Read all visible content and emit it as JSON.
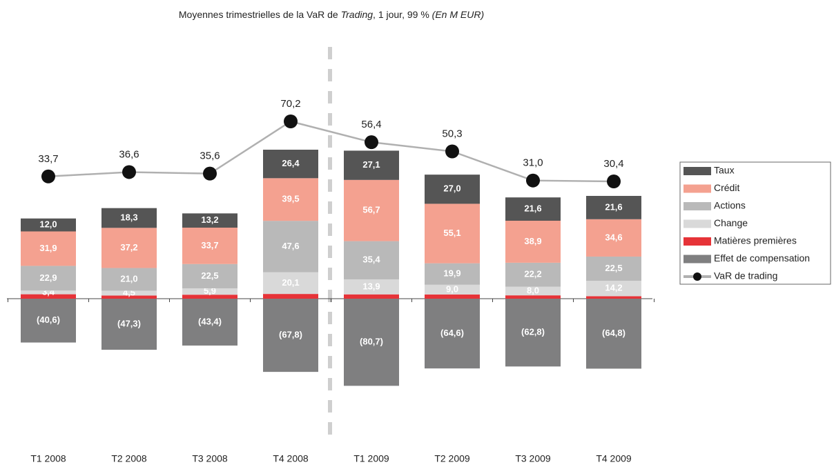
{
  "chart_data": {
    "type": "bar",
    "title": [
      "Moyennes trimestrielles de la VaR de ",
      "Trading",
      ", 1 jour, 99 % ",
      "(En M EUR)"
    ],
    "categories": [
      "T1 2008",
      "T2 2008",
      "T3 2008",
      "T4 2008",
      "T1 2009",
      "T2 2009",
      "T3 2009",
      "T4 2009"
    ],
    "series": [
      {
        "name": "Taux",
        "color": "#555555",
        "values": [
          12.0,
          18.3,
          13.2,
          26.4,
          27.1,
          27.0,
          21.6,
          21.6
        ],
        "value_labels": [
          "12,0",
          "18,3",
          "13,2",
          "26,4",
          "27,1",
          "27,0",
          "21,6",
          "21,6"
        ]
      },
      {
        "name": "Crédit",
        "color": "#f4a190",
        "values": [
          31.9,
          37.2,
          33.7,
          39.5,
          56.7,
          55.1,
          38.9,
          34.6
        ],
        "value_labels": [
          "31,9",
          "37,2",
          "33,7",
          "39,5",
          "56,7",
          "55,1",
          "38,9",
          "34,6"
        ]
      },
      {
        "name": "Actions",
        "color": "#b9b9b9",
        "values": [
          22.9,
          21.0,
          22.5,
          47.6,
          35.4,
          19.9,
          22.2,
          22.5
        ],
        "value_labels": [
          "22,9",
          "21,0",
          "22,5",
          "47,6",
          "35,4",
          "19,9",
          "22,2",
          "22,5"
        ]
      },
      {
        "name": "Change",
        "color": "#d9d9d9",
        "values": [
          3.4,
          4.5,
          5.9,
          20.1,
          13.9,
          9.0,
          8.0,
          14.2
        ],
        "value_labels": [
          "3,4",
          "4,5",
          "5,9",
          "20,1",
          "13,9",
          "9,0",
          "8,0",
          "14,2"
        ]
      },
      {
        "name": "Matières premières",
        "color": "#e63338",
        "values": [
          4.1,
          2.9,
          3.7,
          4.4,
          4.0,
          3.9,
          3.1,
          2.3
        ]
      },
      {
        "name": "Effet de compensation",
        "color": "#7f7f80",
        "values": [
          -40.6,
          -47.3,
          -43.4,
          -67.8,
          -80.7,
          -64.6,
          -62.8,
          -64.8
        ],
        "value_labels": [
          "(40,6)",
          "(47,3)",
          "(43,4)",
          "(67,8)",
          "(80,7)",
          "(64,6)",
          "(62,8)",
          "(64,8)"
        ]
      },
      {
        "name": "VaR de trading",
        "type": "line",
        "color": "#b0b0b0",
        "values": [
          33.7,
          36.6,
          35.6,
          70.2,
          56.4,
          50.3,
          31.0,
          30.4
        ],
        "value_labels": [
          "33,7",
          "36,6",
          "35,6",
          "70,2",
          "56,4",
          "50,3",
          "31,0",
          "30,4"
        ]
      }
    ]
  }
}
